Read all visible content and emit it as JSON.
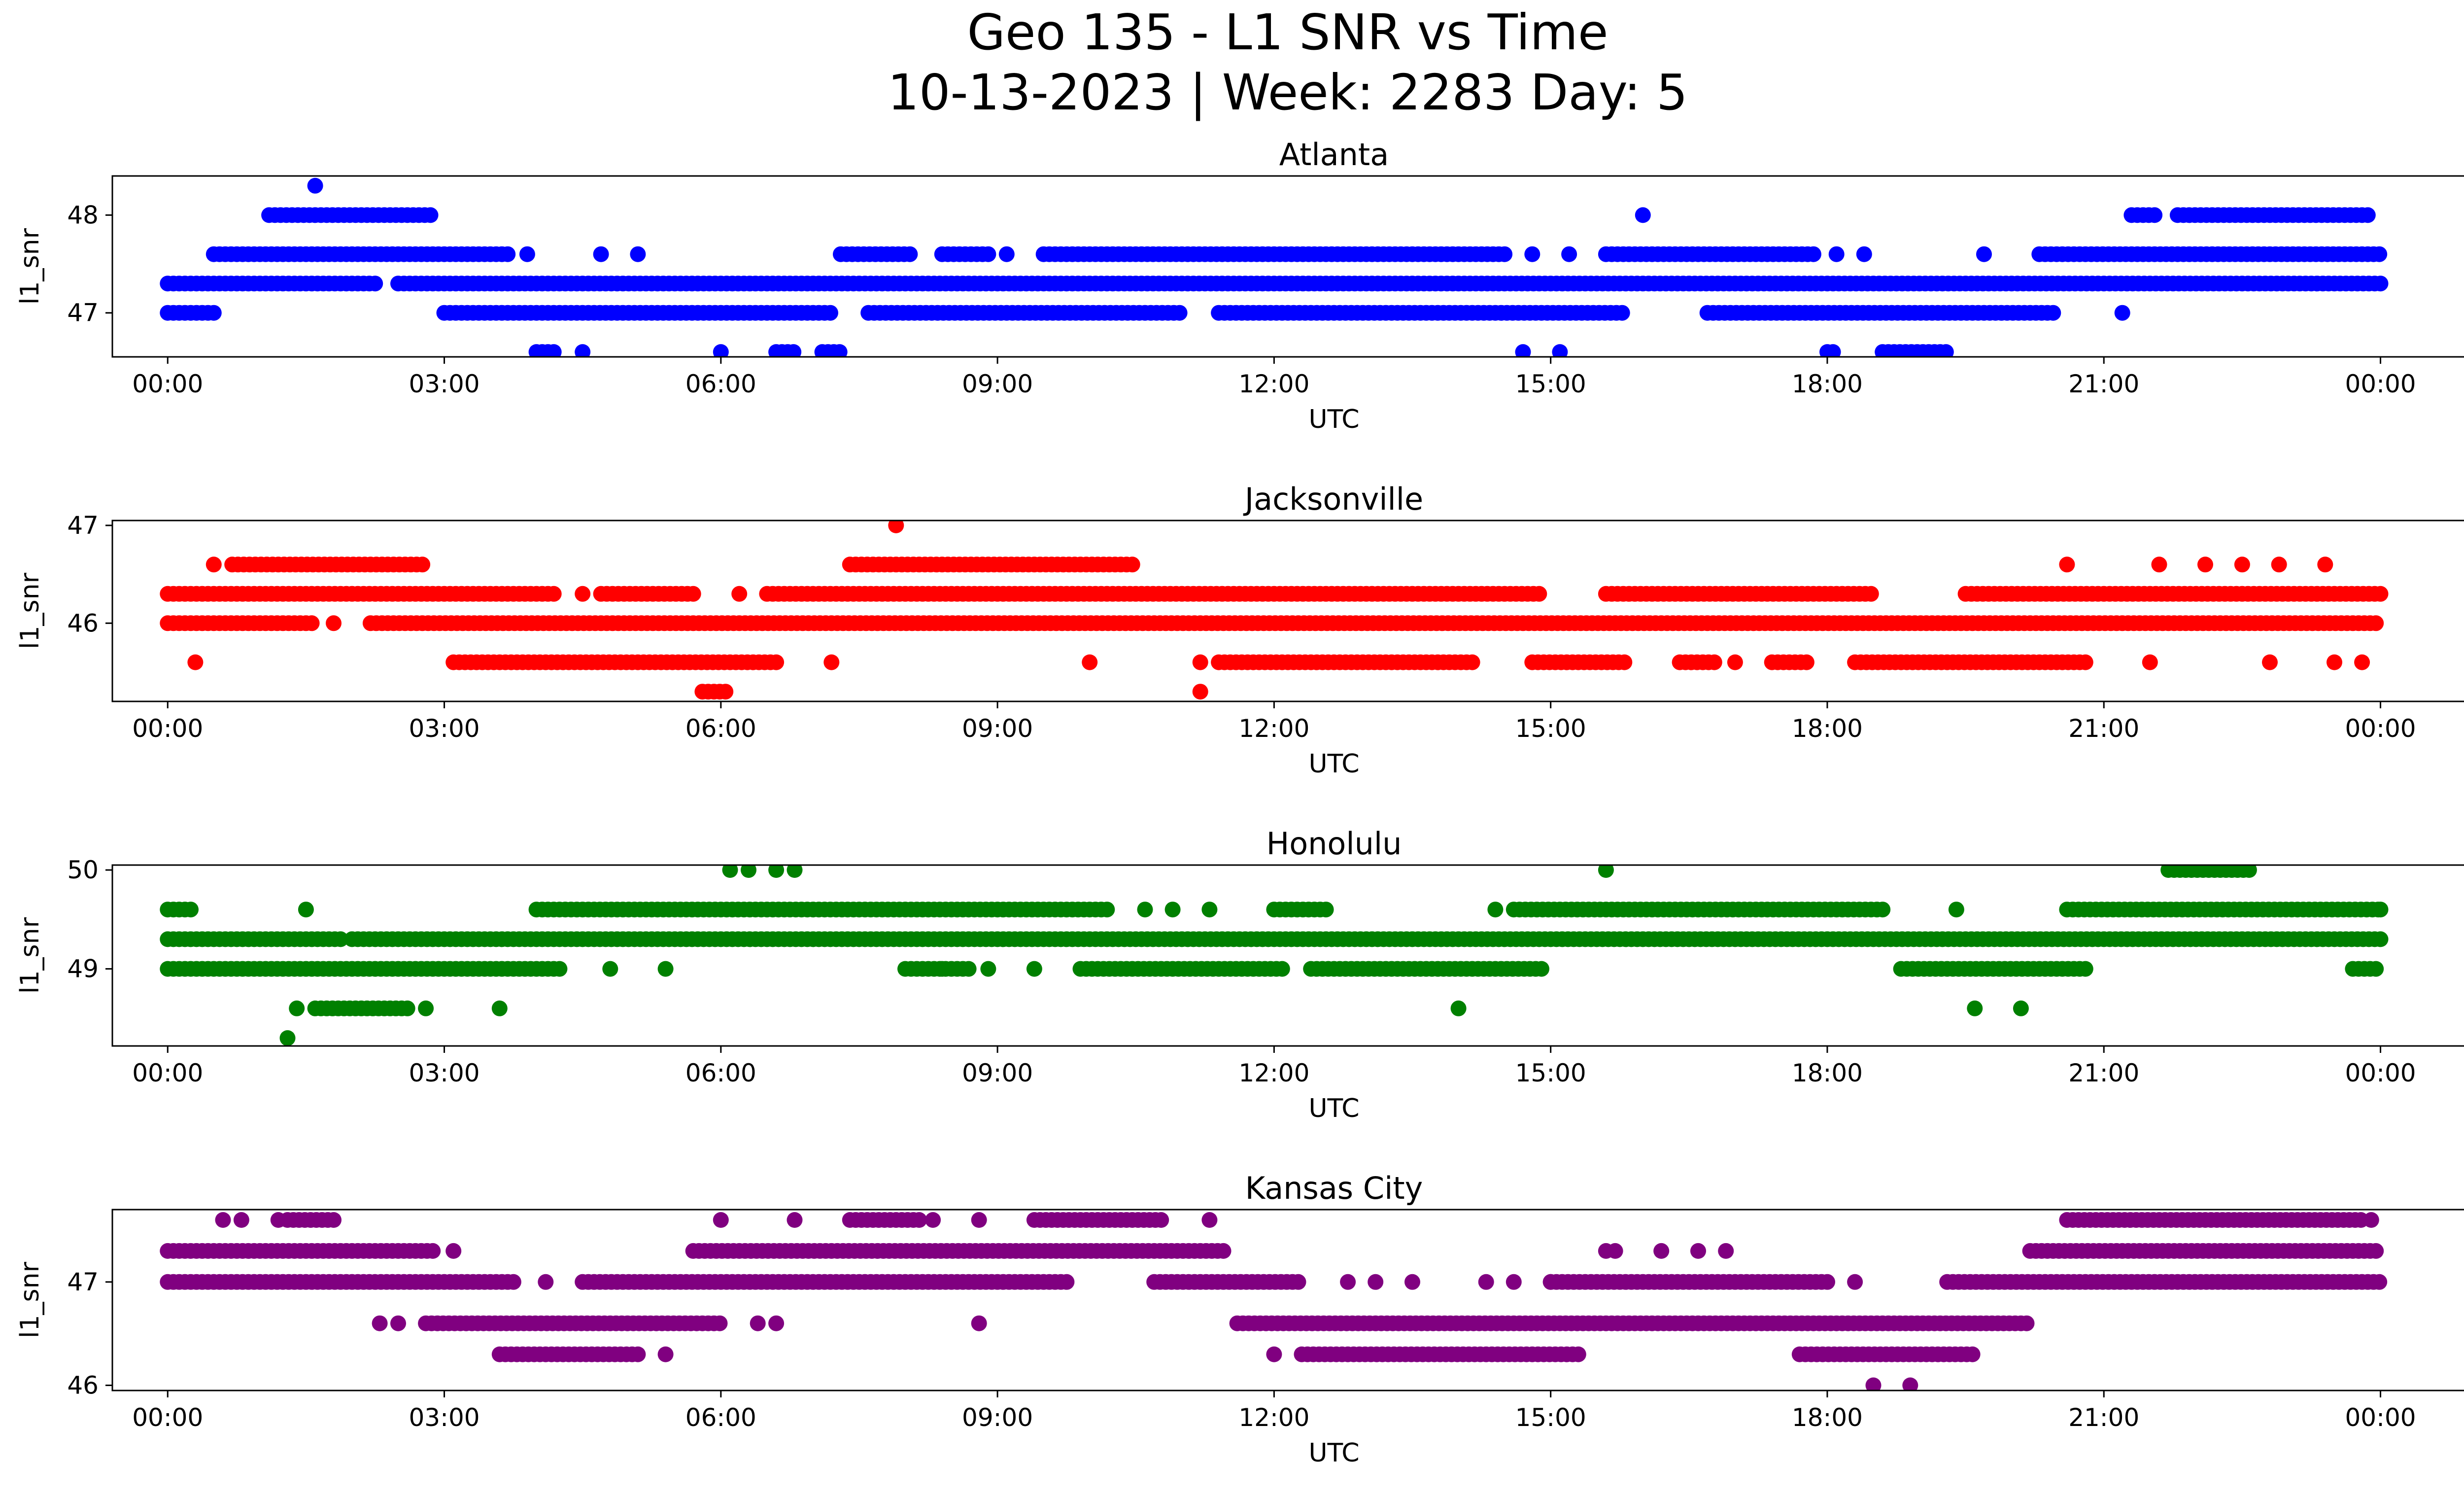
{
  "figure": {
    "title_line1": "Geo 135 - L1 SNR vs Time",
    "title_line2": "10-13-2023 | Week: 2283 Day: 5"
  },
  "chart_data": [
    {
      "type": "scatter",
      "title": "Atlanta",
      "color": "#0000ff",
      "xlabel": "UTC",
      "ylabel": "l1_snr",
      "xlim": [
        -0.6,
        25.9
      ],
      "ylim": [
        46.55,
        48.4
      ],
      "yticks": [
        47,
        48
      ],
      "xtick_labels": [
        "00:00",
        "03:00",
        "06:00",
        "09:00",
        "12:00",
        "15:00",
        "18:00",
        "21:00",
        "00:00"
      ],
      "segments": [
        {
          "y": 47.0,
          "runs": [
            [
              0.0,
              0.5
            ],
            [
              3.0,
              7.2
            ],
            [
              7.6,
              11.0
            ],
            [
              11.4,
              15.8
            ],
            [
              16.7,
              20.5
            ]
          ],
          "points": [
            21.2
          ]
        },
        {
          "y": 47.3,
          "runs": [
            [
              0.0,
              2.3
            ],
            [
              2.5,
              24.0
            ]
          ],
          "points": []
        },
        {
          "y": 47.6,
          "runs": [
            [
              0.5,
              3.7
            ],
            [
              7.3,
              8.1
            ],
            [
              8.4,
              8.9
            ],
            [
              9.5,
              14.5
            ],
            [
              15.6,
              17.9
            ],
            [
              20.3,
              24.0
            ]
          ],
          "points": [
            3.9,
            4.7,
            5.1,
            9.1,
            14.8,
            15.2,
            18.1,
            18.4,
            19.7
          ]
        },
        {
          "y": 48.0,
          "runs": [
            [
              1.1,
              2.9
            ],
            [
              21.3,
              21.6
            ],
            [
              21.8,
              23.9
            ]
          ],
          "points": [
            16.0
          ]
        },
        {
          "y": 48.3,
          "runs": [],
          "points": [
            1.6
          ]
        },
        {
          "y": 46.6,
          "runs": [
            [
              4.0,
              4.2
            ],
            [
              6.6,
              6.8
            ],
            [
              7.1,
              7.3
            ],
            [
              18.0,
              18.1
            ],
            [
              18.6,
              19.3
            ]
          ],
          "points": [
            4.5,
            6.0,
            14.7,
            15.1
          ]
        }
      ]
    },
    {
      "type": "scatter",
      "title": "Jacksonville",
      "color": "#ff0000",
      "xlabel": "UTC",
      "ylabel": "l1_snr",
      "xlim": [
        -0.6,
        25.9
      ],
      "ylim": [
        45.2,
        47.05
      ],
      "yticks": [
        46,
        47
      ],
      "xtick_labels": [
        "00:00",
        "03:00",
        "06:00",
        "09:00",
        "12:00",
        "15:00",
        "18:00",
        "21:00",
        "00:00"
      ],
      "segments": [
        {
          "y": 46.0,
          "runs": [
            [
              0.0,
              1.6
            ],
            [
              2.2,
              24.0
            ]
          ],
          "points": [
            1.8
          ]
        },
        {
          "y": 46.3,
          "runs": [
            [
              0.0,
              4.2
            ],
            [
              4.7,
              5.7
            ],
            [
              6.5,
              14.9
            ],
            [
              15.6,
              18.5
            ],
            [
              19.5,
              24.0
            ]
          ],
          "points": [
            6.2,
            4.5
          ]
        },
        {
          "y": 46.6,
          "runs": [
            [
              0.7,
              2.8
            ],
            [
              7.4,
              10.5
            ]
          ],
          "points": [
            0.5,
            20.6,
            21.6,
            22.1,
            22.5,
            22.9,
            23.4
          ]
        },
        {
          "y": 47.0,
          "runs": [],
          "points": [
            7.9
          ]
        },
        {
          "y": 45.6,
          "runs": [
            [
              3.1,
              6.6
            ],
            [
              11.4,
              14.2
            ],
            [
              14.8,
              15.8
            ],
            [
              16.4,
              16.8
            ],
            [
              17.4,
              17.8
            ],
            [
              18.3,
              20.8
            ]
          ],
          "points": [
            0.3,
            7.2,
            10.0,
            11.2,
            17.0,
            21.5,
            22.8,
            23.5,
            23.8
          ]
        },
        {
          "y": 45.3,
          "runs": [
            [
              5.8,
              6.1
            ]
          ],
          "points": [
            11.2
          ]
        }
      ]
    },
    {
      "type": "scatter",
      "title": "Honolulu",
      "color": "#008000",
      "xlabel": "UTC",
      "ylabel": "l1_snr",
      "xlim": [
        -0.6,
        25.9
      ],
      "ylim": [
        48.22,
        50.05
      ],
      "yticks": [
        49,
        50
      ],
      "xtick_labels": [
        "00:00",
        "03:00",
        "06:00",
        "09:00",
        "12:00",
        "15:00",
        "18:00",
        "21:00",
        "00:00"
      ],
      "segments": [
        {
          "y": 49.3,
          "runs": [
            [
              0.0,
              1.9
            ],
            [
              2.0,
              24.0
            ]
          ],
          "points": []
        },
        {
          "y": 49.6,
          "runs": [
            [
              0.0,
              0.3
            ],
            [
              4.0,
              10.2
            ],
            [
              12.0,
              12.6
            ],
            [
              14.6,
              18.6
            ],
            [
              20.6,
              24.0
            ]
          ],
          "points": [
            1.5,
            10.6,
            10.9,
            11.3,
            14.4,
            19.4,
            24.0
          ]
        },
        {
          "y": 49.0,
          "runs": [
            [
              0.0,
              4.3
            ],
            [
              8.0,
              8.7
            ],
            [
              9.9,
              12.1
            ],
            [
              12.4,
              14.9
            ],
            [
              18.8,
              20.8
            ],
            [
              23.7,
              24.0
            ]
          ],
          "points": [
            4.8,
            5.4,
            8.4,
            8.9,
            9.4
          ]
        },
        {
          "y": 50.0,
          "runs": [
            [
              21.7,
              22.6
            ]
          ],
          "points": [
            6.1,
            6.3,
            6.6,
            6.8,
            15.6
          ]
        },
        {
          "y": 48.6,
          "runs": [
            [
              1.6,
              2.6
            ]
          ],
          "points": [
            1.4,
            2.8,
            3.6,
            14.0,
            19.6,
            20.1
          ]
        },
        {
          "y": 48.3,
          "runs": [],
          "points": [
            1.3
          ]
        }
      ]
    },
    {
      "type": "scatter",
      "title": "Kansas City",
      "color": "#800080",
      "xlabel": "UTC",
      "ylabel": "l1_snr",
      "xlim": [
        -0.6,
        25.9
      ],
      "ylim": [
        45.95,
        47.7
      ],
      "yticks": [
        46,
        47
      ],
      "xtick_labels": [
        "00:00",
        "03:00",
        "06:00",
        "09:00",
        "12:00",
        "15:00",
        "18:00",
        "21:00",
        "00:00"
      ],
      "segments": [
        {
          "y": 47.0,
          "runs": [
            [
              0.0,
              3.8
            ],
            [
              4.5,
              9.8
            ],
            [
              10.7,
              12.3
            ],
            [
              15.0,
              18.0
            ],
            [
              19.3,
              24.0
            ]
          ],
          "points": [
            4.1,
            12.8,
            13.1,
            13.5,
            14.3,
            14.6,
            15.0,
            18.3
          ]
        },
        {
          "y": 47.3,
          "runs": [
            [
              0.0,
              2.9
            ],
            [
              5.7,
              11.5
            ],
            [
              20.2,
              24.0
            ]
          ],
          "points": [
            3.1,
            15.6,
            15.7,
            16.2,
            16.6,
            16.9
          ]
        },
        {
          "y": 47.6,
          "runs": [
            [
              1.3,
              1.8
            ],
            [
              7.4,
              8.2
            ],
            [
              9.4,
              10.8
            ],
            [
              20.6,
              23.8
            ]
          ],
          "points": [
            0.6,
            0.8,
            1.2,
            6.0,
            6.8,
            8.3,
            8.8,
            11.3,
            23.9
          ]
        },
        {
          "y": 46.6,
          "runs": [
            [
              2.8,
              6.0
            ],
            [
              11.6,
              20.2
            ]
          ],
          "points": [
            2.3,
            2.5,
            6.4,
            6.6,
            8.8
          ]
        },
        {
          "y": 46.3,
          "runs": [
            [
              3.6,
              5.1
            ],
            [
              12.3,
              15.3
            ],
            [
              17.7,
              19.6
            ]
          ],
          "points": [
            5.4,
            12.0
          ]
        },
        {
          "y": 46.0,
          "runs": [],
          "points": [
            18.5,
            18.9
          ]
        }
      ]
    }
  ]
}
